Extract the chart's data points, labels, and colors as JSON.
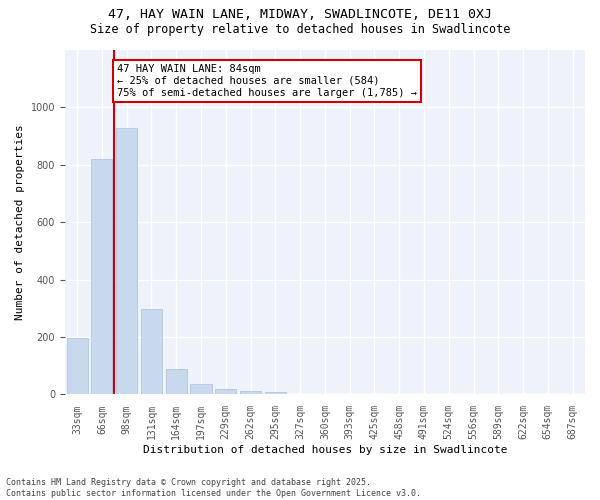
{
  "title": "47, HAY WAIN LANE, MIDWAY, SWADLINCOTE, DE11 0XJ",
  "subtitle": "Size of property relative to detached houses in Swadlincote",
  "xlabel": "Distribution of detached houses by size in Swadlincote",
  "ylabel": "Number of detached properties",
  "categories": [
    "33sqm",
    "66sqm",
    "98sqm",
    "131sqm",
    "164sqm",
    "197sqm",
    "229sqm",
    "262sqm",
    "295sqm",
    "327sqm",
    "360sqm",
    "393sqm",
    "425sqm",
    "458sqm",
    "491sqm",
    "524sqm",
    "556sqm",
    "589sqm",
    "622sqm",
    "654sqm",
    "687sqm"
  ],
  "values": [
    197,
    820,
    928,
    298,
    88,
    37,
    20,
    12,
    8,
    0,
    0,
    0,
    0,
    0,
    0,
    0,
    0,
    0,
    0,
    0,
    0
  ],
  "bar_color": "#c8d9ee",
  "bar_edge_color": "#a8c0de",
  "vline_color": "#cc0000",
  "annotation_text": "47 HAY WAIN LANE: 84sqm\n← 25% of detached houses are smaller (584)\n75% of semi-detached houses are larger (1,785) →",
  "annotation_box_color": "#cc0000",
  "annotation_facecolor": "white",
  "ylim": [
    0,
    1200
  ],
  "yticks": [
    0,
    200,
    400,
    600,
    800,
    1000
  ],
  "background_color": "#eef2fa",
  "grid_color": "white",
  "footnote": "Contains HM Land Registry data © Crown copyright and database right 2025.\nContains public sector information licensed under the Open Government Licence v3.0.",
  "title_fontsize": 9.5,
  "subtitle_fontsize": 8.5,
  "xlabel_fontsize": 8,
  "ylabel_fontsize": 8,
  "tick_fontsize": 7,
  "annotation_fontsize": 7.5,
  "footnote_fontsize": 6
}
